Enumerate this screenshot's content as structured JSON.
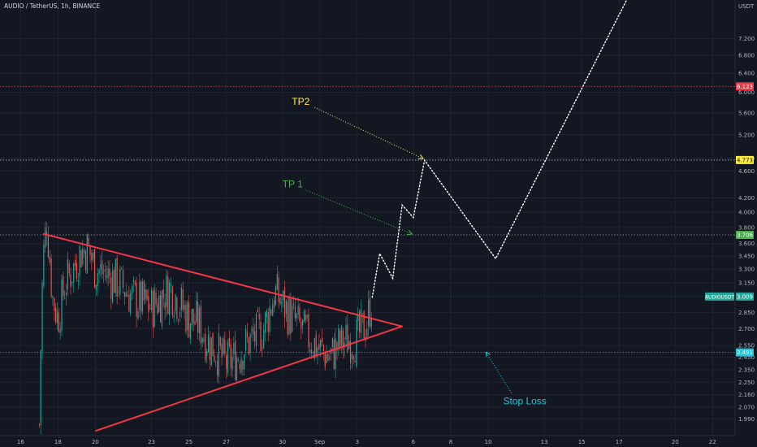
{
  "chart_data": {
    "type": "candlestick",
    "title": "AUDIO / TetherUS, 1h, BINANCE",
    "currency_label": "USDT",
    "price_scale": "log",
    "ylim": [
      1.88,
      8.2
    ],
    "x_ticks": [
      {
        "label": "16",
        "day": 16
      },
      {
        "label": "18",
        "day": 18
      },
      {
        "label": "20",
        "day": 20
      },
      {
        "label": "23",
        "day": 23
      },
      {
        "label": "25",
        "day": 25
      },
      {
        "label": "27",
        "day": 27
      },
      {
        "label": "30",
        "day": 30
      },
      {
        "label": "Sep",
        "day": 32
      },
      {
        "label": "3",
        "day": 34
      },
      {
        "label": "6",
        "day": 37
      },
      {
        "label": "8",
        "day": 39
      },
      {
        "label": "10",
        "day": 41
      },
      {
        "label": "13",
        "day": 44
      },
      {
        "label": "15",
        "day": 46
      },
      {
        "label": "17",
        "day": 48
      },
      {
        "label": "20",
        "day": 51
      },
      {
        "label": "22",
        "day": 53
      }
    ],
    "y_ticks": [
      "7.200",
      "6.800",
      "6.400",
      "6.000",
      "5.600",
      "5.200",
      "4.800",
      "4.600",
      "4.200",
      "4.000",
      "3.800",
      "3.600",
      "3.450",
      "3.300",
      "3.150",
      "2.850",
      "2.700",
      "2.550",
      "2.450",
      "2.350",
      "2.250",
      "2.160",
      "2.070",
      "1.990"
    ],
    "y_tick_values": [
      7.2,
      6.8,
      6.4,
      6.0,
      5.6,
      5.2,
      4.8,
      4.6,
      4.2,
      4.0,
      3.8,
      3.6,
      3.45,
      3.3,
      3.15,
      2.85,
      2.7,
      2.55,
      2.45,
      2.35,
      2.25,
      2.16,
      2.07,
      1.99
    ],
    "levels": [
      {
        "label": "6.123",
        "value": 6.123,
        "color": "#f23645",
        "line": "#e05a5a"
      },
      {
        "label": "4.773",
        "value": 4.773,
        "color": "#ffeb3b",
        "line": "#d8d8d8"
      },
      {
        "label": "3.706",
        "value": 3.706,
        "color": "#4caf50",
        "line": "#bdbdbd"
      },
      {
        "label": "2.491",
        "value": 2.491,
        "color": "#26c6da",
        "line": "#9e9e9e"
      }
    ],
    "current_price": {
      "symbol": "AUDIOUSDT",
      "label": "3.009",
      "value": 3.009,
      "color": "#26a69a"
    },
    "triangle": {
      "points": [
        {
          "day": 17.2,
          "price": 3.72
        },
        {
          "day": 36.4,
          "price": 2.72
        },
        {
          "day": 20.0,
          "price": 1.91
        }
      ],
      "color": "#f23645"
    },
    "candles_anchor": [
      [
        17.0,
        1.95
      ],
      [
        17.2,
        3.4
      ],
      [
        17.4,
        3.9
      ],
      [
        17.7,
        3.0
      ],
      [
        18.0,
        2.8
      ],
      [
        18.4,
        3.15
      ],
      [
        18.8,
        3.3
      ],
      [
        19.2,
        3.5
      ],
      [
        19.6,
        3.55
      ],
      [
        20.0,
        3.3
      ],
      [
        21.0,
        3.2
      ],
      [
        22.0,
        3.0
      ],
      [
        23.0,
        2.9
      ],
      [
        24.0,
        3.1
      ],
      [
        25.0,
        2.8
      ],
      [
        25.5,
        2.75
      ],
      [
        26.0,
        2.6
      ],
      [
        26.5,
        2.5
      ],
      [
        27.0,
        2.4
      ],
      [
        27.5,
        2.45
      ],
      [
        28.0,
        2.55
      ],
      [
        29.0,
        2.7
      ],
      [
        29.6,
        3.05
      ],
      [
        30.5,
        2.8
      ],
      [
        31.0,
        2.7
      ],
      [
        31.5,
        2.6
      ],
      [
        32.0,
        2.52
      ],
      [
        32.5,
        2.45
      ],
      [
        33.0,
        2.55
      ],
      [
        33.5,
        2.6
      ],
      [
        34.0,
        2.62
      ],
      [
        34.5,
        2.75
      ],
      [
        34.8,
        3.0
      ]
    ],
    "projection": [
      {
        "day": 34.8,
        "price": 3.0
      },
      {
        "day": 35.2,
        "price": 3.48
      },
      {
        "day": 35.9,
        "price": 3.2
      },
      {
        "day": 36.4,
        "price": 4.1
      },
      {
        "day": 37.0,
        "price": 3.93
      },
      {
        "day": 37.6,
        "price": 4.77
      },
      {
        "day": 41.4,
        "price": 3.42
      },
      {
        "day": 48.5,
        "price": 8.3
      }
    ],
    "annotations": [
      {
        "text": "TP2",
        "day": 30.5,
        "price": 5.75,
        "color": "#ffeb3b",
        "arrow_to": {
          "day": 37.5,
          "price": 4.8
        }
      },
      {
        "text": "TP 1",
        "day": 30.0,
        "price": 4.35,
        "color": "#4caf50",
        "arrow_to": {
          "day": 36.9,
          "price": 3.72
        }
      },
      {
        "text": "Stop Loss",
        "day": 41.8,
        "price": 2.09,
        "color": "#26c6da",
        "arrow_to": {
          "day": 40.9,
          "price": 2.49
        }
      }
    ]
  }
}
